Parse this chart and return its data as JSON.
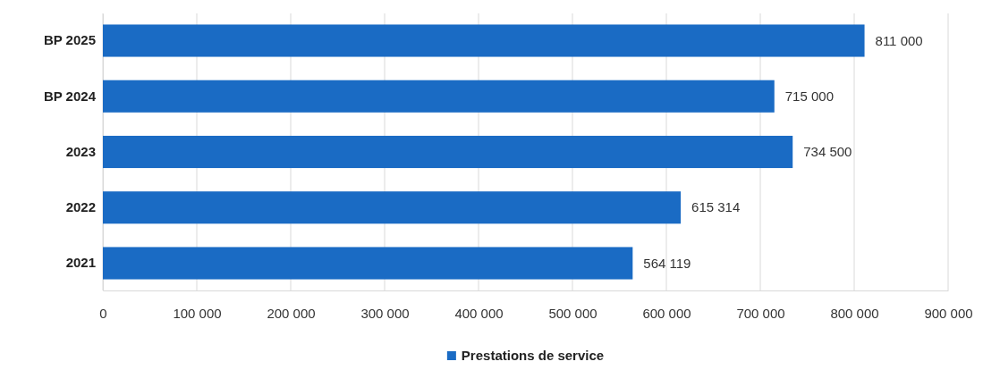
{
  "chart_data": {
    "type": "bar",
    "orientation": "horizontal",
    "categories": [
      "BP 2025",
      "BP 2024",
      "2023",
      "2022",
      "2021"
    ],
    "series": [
      {
        "name": "Prestations de service",
        "color": "#1a6bc4",
        "values": [
          811000,
          715000,
          734500,
          615314,
          564119
        ],
        "value_labels": [
          "811 000",
          "715 000",
          "734 500",
          "615 314",
          "564 119"
        ]
      }
    ],
    "xlim": [
      0,
      900000
    ],
    "xticks": [
      0,
      {
        "value": 100000,
        "label": "100 000"
      },
      {
        "value": 200000,
        "label": "200 000"
      },
      {
        "value": 300000,
        "label": "300 000"
      },
      {
        "value": 400000,
        "label": "400 000"
      },
      {
        "value": 500000,
        "label": "500 000"
      },
      {
        "value": 600000,
        "label": "600 000"
      },
      {
        "value": 700000,
        "label": "700 000"
      },
      {
        "value": 800000,
        "label": "800 000"
      },
      {
        "value": 900000,
        "label": "900 000"
      }
    ],
    "grid": "x",
    "legend": "bottom"
  }
}
